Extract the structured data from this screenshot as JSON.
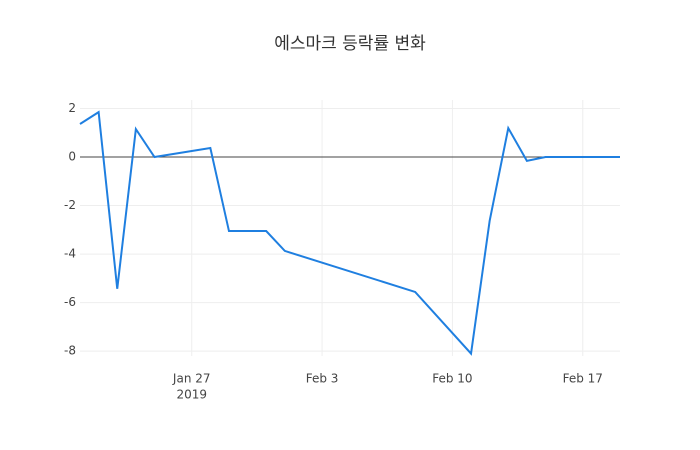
{
  "chart_data": {
    "type": "line",
    "title": "에스마크 등락률 변화",
    "x": [
      "2019-01-21",
      "2019-01-22",
      "2019-01-23",
      "2019-01-24",
      "2019-01-25",
      "2019-01-28",
      "2019-01-29",
      "2019-01-31",
      "2019-02-01",
      "2019-02-08",
      "2019-02-11",
      "2019-02-12",
      "2019-02-13",
      "2019-02-14",
      "2019-02-15",
      "2019-02-18",
      "2019-02-19"
    ],
    "series": [
      {
        "name": "등락률",
        "color": "#1f7fe0",
        "values": [
          1.36,
          1.85,
          -5.43,
          1.15,
          0.0,
          0.37,
          -3.05,
          -3.05,
          -3.87,
          -5.56,
          -8.1,
          -2.63,
          1.19,
          -0.16,
          0.0,
          0.0,
          0.0
        ]
      }
    ],
    "xlim": [
      "2019-01-21",
      "2019-02-19"
    ],
    "xticks": [
      {
        "value": "2019-01-27",
        "label": "Jan 27"
      },
      {
        "value": "2019-02-03",
        "label": "Feb 3"
      },
      {
        "value": "2019-02-10",
        "label": "Feb 10"
      },
      {
        "value": "2019-02-17",
        "label": "Feb 17"
      }
    ],
    "x_year_label": "2019",
    "ylim": [
      -8.2,
      2.35
    ],
    "yticks": [
      2,
      0,
      -2,
      -4,
      -6,
      -8
    ],
    "grid": true,
    "zeroline": true
  }
}
